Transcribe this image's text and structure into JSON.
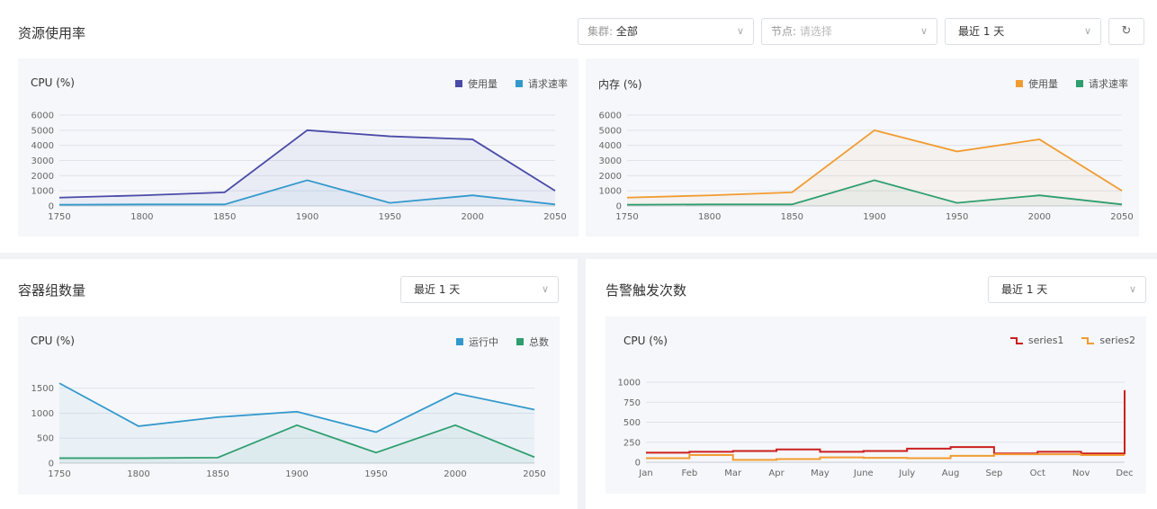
{
  "top": {
    "title": "资源使用率",
    "cluster_select": {
      "prefix": "集群:",
      "value": "全部"
    },
    "node_select": {
      "prefix": "节点:",
      "placeholder": "请选择"
    },
    "range_select": "最近 1 天",
    "refresh_icon": "↻"
  },
  "cpu_chart": {
    "title": "CPU (%)",
    "legend": [
      {
        "name": "使用量",
        "color": "#4a4aa8"
      },
      {
        "name": "请求速率",
        "color": "#3399cc"
      }
    ]
  },
  "mem_chart": {
    "title": "内存 (%)",
    "legend": [
      {
        "name": "使用量",
        "color": "#f29b30"
      },
      {
        "name": "请求速率",
        "color": "#2e9e6e"
      }
    ]
  },
  "pods": {
    "title": "容器组数量",
    "range_select": "最近 1 天",
    "chart_title": "CPU (%)",
    "legend": [
      {
        "name": "运行中",
        "color": "#3399cc"
      },
      {
        "name": "总数",
        "color": "#2e9e6e"
      }
    ]
  },
  "alerts": {
    "title": "告警触发次数",
    "range_select": "最近 1 天",
    "chart_title": "CPU (%)",
    "legend": [
      {
        "name": "series1",
        "color": "#cc1f1f"
      },
      {
        "name": "series2",
        "color": "#f29b30"
      }
    ]
  },
  "chart_data": [
    {
      "type": "area",
      "title": "CPU (%)",
      "x": [
        1750,
        1800,
        1850,
        1900,
        1950,
        2000,
        2050
      ],
      "ylim": [
        0,
        6000
      ],
      "yticks": [
        0,
        1000,
        2000,
        3000,
        4000,
        5000,
        6000
      ],
      "series": [
        {
          "name": "使用量",
          "color": "#4a4aa8",
          "values": [
            550,
            700,
            900,
            5000,
            4600,
            4400,
            1000
          ]
        },
        {
          "name": "请求速率",
          "color": "#3399cc",
          "values": [
            80,
            100,
            100,
            1700,
            200,
            700,
            100
          ]
        }
      ]
    },
    {
      "type": "area",
      "title": "内存 (%)",
      "x": [
        1750,
        1800,
        1850,
        1900,
        1950,
        2000,
        2050
      ],
      "ylim": [
        0,
        6000
      ],
      "yticks": [
        0,
        1000,
        2000,
        3000,
        4000,
        5000,
        6000
      ],
      "series": [
        {
          "name": "使用量",
          "color": "#f29b30",
          "values": [
            550,
            700,
            900,
            5000,
            3600,
            4400,
            1000
          ]
        },
        {
          "name": "请求速率",
          "color": "#2e9e6e",
          "values": [
            80,
            100,
            100,
            1700,
            200,
            700,
            100
          ]
        }
      ]
    },
    {
      "type": "area",
      "title": "CPU (%)",
      "x": [
        1750,
        1800,
        1850,
        1900,
        1950,
        2000,
        2050
      ],
      "ylim": [
        0,
        1800
      ],
      "yticks": [
        0,
        500,
        1000,
        1500
      ],
      "series": [
        {
          "name": "运行中",
          "color": "#3399cc",
          "values": [
            1600,
            740,
            920,
            1030,
            620,
            1400,
            1070
          ]
        },
        {
          "name": "总数",
          "color": "#2e9e6e",
          "values": [
            100,
            100,
            110,
            760,
            210,
            760,
            120
          ]
        }
      ]
    },
    {
      "type": "line",
      "title": "CPU (%)",
      "categories": [
        "Jan",
        "Feb",
        "Mar",
        "Apr",
        "May",
        "June",
        "July",
        "Aug",
        "Sep",
        "Oct",
        "Nov",
        "Dec"
      ],
      "ylim": [
        0,
        1000
      ],
      "yticks": [
        0,
        250,
        500,
        750,
        1000
      ],
      "series": [
        {
          "name": "series1",
          "color": "#cc1f1f",
          "values": [
            120,
            130,
            140,
            160,
            130,
            140,
            170,
            190,
            110,
            130,
            110,
            900
          ]
        },
        {
          "name": "series2",
          "color": "#f29b30",
          "values": [
            50,
            90,
            30,
            40,
            60,
            55,
            50,
            80,
            100,
            100,
            90,
            90
          ]
        }
      ]
    }
  ]
}
